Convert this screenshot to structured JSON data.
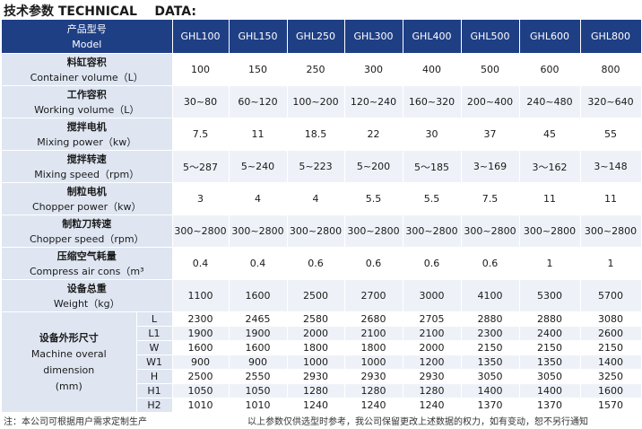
{
  "title": "技术参数 TECHNICAL    DATA:",
  "header": {
    "label_cn": "产品型号",
    "label_en": "Model",
    "models": [
      "GHL100",
      "GHL150",
      "GHL250",
      "GHL300",
      "GHL400",
      "GHL500",
      "GHL600",
      "GHL800"
    ]
  },
  "rows": [
    {
      "cn": "料缸容积",
      "en": "Container volume（L）",
      "values": [
        "100",
        "150",
        "250",
        "300",
        "400",
        "500",
        "600",
        "800"
      ]
    },
    {
      "cn": "工作容积",
      "en": "Working volume（L）",
      "values": [
        "30~80",
        "60~120",
        "100~200",
        "120~240",
        "160~320",
        "200~400",
        "240~480",
        "320~640"
      ]
    },
    {
      "cn": "搅拌电机",
      "en": "Mixing power（kw）",
      "values": [
        "7.5",
        "11",
        "18.5",
        "22",
        "30",
        "37",
        "45",
        "55"
      ]
    },
    {
      "cn": "搅拌转速",
      "en": "Mixing speed（rpm）",
      "values": [
        "5～287",
        "5~240",
        "5~223",
        "5~200",
        "5～185",
        "3~169",
        "3～162",
        "3~148"
      ]
    },
    {
      "cn": "制粒电机",
      "en": "Chopper power（kw）",
      "values": [
        "3",
        "4",
        "4",
        "5.5",
        "5.5",
        "7.5",
        "11",
        "11"
      ]
    },
    {
      "cn": "制粒刀转速",
      "en": "Chopper speed（rpm）",
      "values": [
        "300~2800",
        "300~2800",
        "300~2800",
        "300~2800",
        "300~2800",
        "300~2800",
        "300~2800",
        "300~2800"
      ]
    },
    {
      "cn": "压缩空气耗量",
      "en": "Compress air cons（m³",
      "values": [
        "0.4",
        "0.4",
        "0.6",
        "0.6",
        "0.6",
        "0.6",
        "1",
        "1"
      ]
    },
    {
      "cn": "设备总重",
      "en": "Weight（kg）",
      "values": [
        "1100",
        "1600",
        "2500",
        "2700",
        "3000",
        "4100",
        "5300",
        "5700"
      ]
    }
  ],
  "dimensions": {
    "cn": "设备外形尺寸",
    "en1": "Machine overal",
    "en2": "dimension",
    "unit": "(mm)",
    "rows": [
      {
        "key": "L",
        "values": [
          "2300",
          "2465",
          "2580",
          "2680",
          "2705",
          "2880",
          "2880",
          "3080"
        ]
      },
      {
        "key": "L1",
        "values": [
          "1900",
          "1900",
          "2000",
          "2100",
          "2100",
          "2300",
          "2400",
          "2600"
        ]
      },
      {
        "key": "W",
        "values": [
          "1600",
          "1600",
          "1800",
          "1800",
          "2000",
          "2150",
          "2150",
          "2150"
        ]
      },
      {
        "key": "W1",
        "values": [
          "900",
          "900",
          "1000",
          "1000",
          "1200",
          "1350",
          "1350",
          "1400"
        ]
      },
      {
        "key": "H",
        "values": [
          "2500",
          "2550",
          "2930",
          "2930",
          "2930",
          "3050",
          "3050",
          "3250"
        ]
      },
      {
        "key": "H1",
        "values": [
          "1050",
          "1050",
          "1280",
          "1280",
          "1280",
          "1400",
          "1400",
          "1600"
        ]
      },
      {
        "key": "H2",
        "values": [
          "1010",
          "1010",
          "1240",
          "1240",
          "1240",
          "1370",
          "1370",
          "1570"
        ]
      }
    ]
  },
  "footer": {
    "left": "注：本公司可根据用户需求定制生产",
    "right": "以上参数仅供选型时参考，我公司保留更改上述数据的权力，如有变动，恕不另行通知"
  },
  "colors": {
    "header_bg": "#1f3f85",
    "label_bg": "#dfe6f2",
    "stripe_bg": "#eef2f8"
  }
}
